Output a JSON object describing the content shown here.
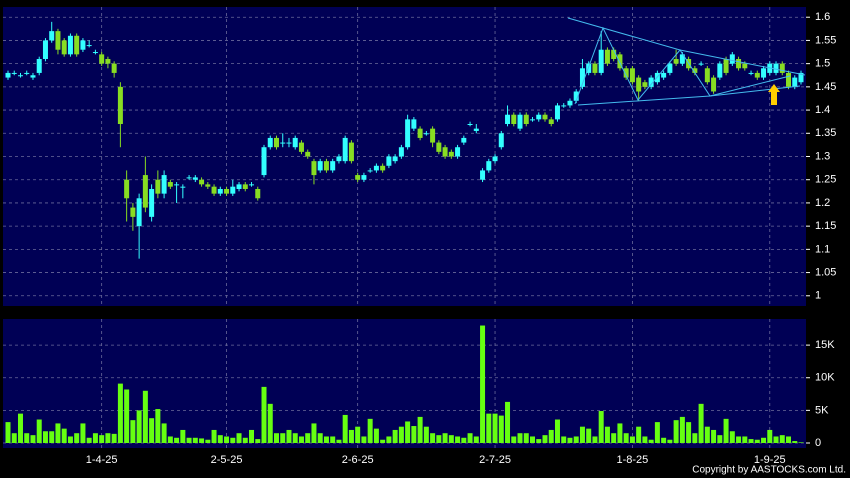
{
  "chart_data": [
    {
      "type": "candlestick",
      "up_color": "#33ffff",
      "down_color": "#88dd22",
      "ylim": [
        0.978,
        1.622
      ],
      "yticks": [
        1,
        1.05,
        1.1,
        1.15,
        1.2,
        1.25,
        1.3,
        1.35,
        1.4,
        1.45,
        1.5,
        1.55,
        1.6
      ],
      "grid": true,
      "categories": [
        null,
        null,
        null,
        null,
        null,
        null,
        null,
        null,
        null,
        null,
        null,
        null,
        null,
        null,
        null,
        "1-4-25",
        null,
        null,
        null,
        null,
        null,
        null,
        null,
        null,
        null,
        null,
        null,
        null,
        null,
        null,
        null,
        null,
        null,
        null,
        null,
        "2-5-25",
        null,
        null,
        null,
        null,
        null,
        null,
        null,
        null,
        null,
        null,
        null,
        null,
        null,
        null,
        null,
        null,
        null,
        null,
        null,
        null,
        "2-6-25",
        null,
        null,
        null,
        null,
        null,
        null,
        null,
        null,
        null,
        null,
        null,
        null,
        null,
        null,
        null,
        null,
        null,
        null,
        null,
        null,
        null,
        "2-7-25",
        null,
        null,
        null,
        null,
        null,
        null,
        null,
        null,
        null,
        null,
        null,
        null,
        null,
        null,
        null,
        null,
        null,
        null,
        null,
        null,
        null,
        "1-8-25",
        null,
        null,
        null,
        null,
        null,
        null,
        null,
        null,
        null,
        null,
        null,
        null,
        null,
        null,
        null,
        null,
        null,
        null,
        null,
        null,
        null,
        "1-9-25",
        null,
        null,
        null,
        null,
        null
      ],
      "ohlc": [
        [
          1.47,
          1.485,
          1.465,
          1.48
        ],
        [
          1.48,
          1.485,
          1.475,
          1.48
        ],
        [
          1.475,
          1.48,
          1.47,
          1.475
        ],
        [
          1.48,
          1.485,
          1.475,
          1.48
        ],
        [
          1.47,
          1.48,
          1.465,
          1.475
        ],
        [
          1.48,
          1.515,
          1.475,
          1.51
        ],
        [
          1.51,
          1.555,
          1.505,
          1.55
        ],
        [
          1.55,
          1.59,
          1.545,
          1.57
        ],
        [
          1.57,
          1.575,
          1.52,
          1.53
        ],
        [
          1.55,
          1.555,
          1.515,
          1.52
        ],
        [
          1.52,
          1.565,
          1.515,
          1.56
        ],
        [
          1.56,
          1.565,
          1.515,
          1.52
        ],
        [
          1.53,
          1.555,
          1.525,
          1.55
        ],
        [
          1.54,
          1.55,
          1.535,
          1.54
        ],
        [
          1.525,
          1.53,
          1.52,
          1.525
        ],
        [
          1.52,
          1.525,
          1.495,
          1.5
        ],
        [
          1.51,
          1.515,
          1.49,
          1.5
        ],
        [
          1.5,
          1.505,
          1.47,
          1.48
        ],
        [
          1.45,
          1.46,
          1.32,
          1.37
        ],
        [
          1.25,
          1.27,
          1.16,
          1.21
        ],
        [
          1.19,
          1.2,
          1.14,
          1.17
        ],
        [
          1.15,
          1.22,
          1.08,
          1.21
        ],
        [
          1.26,
          1.3,
          1.18,
          1.19
        ],
        [
          1.17,
          1.24,
          1.16,
          1.23
        ],
        [
          1.25,
          1.27,
          1.21,
          1.22
        ],
        [
          1.22,
          1.27,
          1.21,
          1.26
        ],
        [
          1.245,
          1.25,
          1.23,
          1.235
        ],
        [
          1.24,
          1.245,
          1.2,
          1.24
        ],
        [
          1.235,
          1.24,
          1.21,
          1.235
        ],
        [
          1.255,
          1.26,
          1.25,
          1.255
        ],
        [
          1.25,
          1.26,
          1.245,
          1.255
        ],
        [
          1.25,
          1.255,
          1.235,
          1.24
        ],
        [
          1.24,
          1.245,
          1.23,
          1.235
        ],
        [
          1.235,
          1.24,
          1.215,
          1.22
        ],
        [
          1.22,
          1.235,
          1.215,
          1.23
        ],
        [
          1.23,
          1.235,
          1.215,
          1.22
        ],
        [
          1.22,
          1.25,
          1.215,
          1.235
        ],
        [
          1.23,
          1.245,
          1.225,
          1.24
        ],
        [
          1.24,
          1.245,
          1.225,
          1.23
        ],
        [
          1.24,
          1.245,
          1.235,
          1.24
        ],
        [
          1.23,
          1.235,
          1.205,
          1.21
        ],
        [
          1.26,
          1.325,
          1.255,
          1.32
        ],
        [
          1.32,
          1.345,
          1.315,
          1.34
        ],
        [
          1.34,
          1.345,
          1.315,
          1.32
        ],
        [
          1.33,
          1.35,
          1.32,
          1.33
        ],
        [
          1.33,
          1.34,
          1.32,
          1.33
        ],
        [
          1.32,
          1.345,
          1.315,
          1.34
        ],
        [
          1.33,
          1.335,
          1.305,
          1.31
        ],
        [
          1.31,
          1.315,
          1.295,
          1.3
        ],
        [
          1.29,
          1.295,
          1.24,
          1.26
        ],
        [
          1.27,
          1.295,
          1.265,
          1.29
        ],
        [
          1.29,
          1.295,
          1.265,
          1.27
        ],
        [
          1.27,
          1.295,
          1.265,
          1.29
        ],
        [
          1.29,
          1.305,
          1.285,
          1.3
        ],
        [
          1.29,
          1.345,
          1.285,
          1.34
        ],
        [
          1.33,
          1.335,
          1.285,
          1.29
        ],
        [
          1.26,
          1.265,
          1.245,
          1.25
        ],
        [
          1.25,
          1.265,
          1.245,
          1.26
        ],
        [
          1.27,
          1.275,
          1.265,
          1.27
        ],
        [
          1.27,
          1.285,
          1.265,
          1.28
        ],
        [
          1.28,
          1.285,
          1.265,
          1.27
        ],
        [
          1.28,
          1.305,
          1.275,
          1.3
        ],
        [
          1.29,
          1.305,
          1.285,
          1.3
        ],
        [
          1.3,
          1.325,
          1.295,
          1.32
        ],
        [
          1.32,
          1.39,
          1.315,
          1.38
        ],
        [
          1.36,
          1.385,
          1.355,
          1.38
        ],
        [
          1.36,
          1.365,
          1.335,
          1.34
        ],
        [
          1.35,
          1.355,
          1.345,
          1.35
        ],
        [
          1.36,
          1.365,
          1.32,
          1.33
        ],
        [
          1.33,
          1.335,
          1.305,
          1.31
        ],
        [
          1.32,
          1.325,
          1.295,
          1.3
        ],
        [
          1.31,
          1.315,
          1.295,
          1.3
        ],
        [
          1.3,
          1.325,
          1.295,
          1.32
        ],
        [
          1.33,
          1.345,
          1.325,
          1.34
        ],
        [
          1.37,
          1.375,
          1.365,
          1.37
        ],
        [
          1.355,
          1.37,
          1.35,
          1.36
        ],
        [
          1.25,
          1.275,
          1.245,
          1.27
        ],
        [
          1.27,
          1.295,
          1.265,
          1.29
        ],
        [
          1.29,
          1.305,
          1.285,
          1.3
        ],
        [
          1.32,
          1.355,
          1.315,
          1.35
        ],
        [
          1.37,
          1.41,
          1.365,
          1.39
        ],
        [
          1.39,
          1.395,
          1.365,
          1.37
        ],
        [
          1.36,
          1.395,
          1.355,
          1.39
        ],
        [
          1.39,
          1.395,
          1.365,
          1.37
        ],
        [
          1.38,
          1.385,
          1.375,
          1.38
        ],
        [
          1.38,
          1.395,
          1.375,
          1.39
        ],
        [
          1.39,
          1.395,
          1.375,
          1.38
        ],
        [
          1.38,
          1.385,
          1.365,
          1.37
        ],
        [
          1.38,
          1.415,
          1.375,
          1.41
        ],
        [
          1.41,
          1.415,
          1.405,
          1.41
        ],
        [
          1.41,
          1.425,
          1.405,
          1.42
        ],
        [
          1.42,
          1.445,
          1.415,
          1.44
        ],
        [
          1.45,
          1.51,
          1.445,
          1.49
        ],
        [
          1.48,
          1.505,
          1.475,
          1.5
        ],
        [
          1.5,
          1.505,
          1.475,
          1.48
        ],
        [
          1.48,
          1.57,
          1.475,
          1.53
        ],
        [
          1.53,
          1.535,
          1.495,
          1.5
        ],
        [
          1.53,
          1.535,
          1.505,
          1.51
        ],
        [
          1.52,
          1.525,
          1.485,
          1.49
        ],
        [
          1.49,
          1.495,
          1.465,
          1.47
        ],
        [
          1.49,
          1.495,
          1.455,
          1.46
        ],
        [
          1.47,
          1.475,
          1.42,
          1.44
        ],
        [
          1.46,
          1.465,
          1.445,
          1.45
        ],
        [
          1.45,
          1.475,
          1.445,
          1.47
        ],
        [
          1.46,
          1.485,
          1.455,
          1.48
        ],
        [
          1.47,
          1.485,
          1.465,
          1.48
        ],
        [
          1.48,
          1.505,
          1.475,
          1.5
        ],
        [
          1.51,
          1.53,
          1.495,
          1.5
        ],
        [
          1.5,
          1.525,
          1.495,
          1.52
        ],
        [
          1.51,
          1.515,
          1.485,
          1.49
        ],
        [
          1.49,
          1.495,
          1.475,
          1.48
        ],
        [
          1.5,
          1.505,
          1.495,
          1.5
        ],
        [
          1.49,
          1.495,
          1.455,
          1.46
        ],
        [
          1.47,
          1.475,
          1.435,
          1.44
        ],
        [
          1.47,
          1.505,
          1.465,
          1.5
        ],
        [
          1.51,
          1.515,
          1.475,
          1.48
        ],
        [
          1.5,
          1.525,
          1.495,
          1.52
        ],
        [
          1.51,
          1.515,
          1.485,
          1.49
        ],
        [
          1.5,
          1.505,
          1.485,
          1.49
        ],
        [
          1.48,
          1.485,
          1.475,
          1.48
        ],
        [
          1.48,
          1.485,
          1.465,
          1.47
        ],
        [
          1.47,
          1.495,
          1.465,
          1.49
        ],
        [
          1.48,
          1.505,
          1.475,
          1.5
        ],
        [
          1.48,
          1.505,
          1.475,
          1.5
        ],
        [
          1.5,
          1.505,
          1.475,
          1.48
        ],
        [
          1.48,
          1.485,
          1.445,
          1.45
        ],
        [
          1.45,
          1.475,
          1.445,
          1.47
        ],
        [
          1.46,
          1.485,
          1.455,
          1.48
        ]
      ]
    },
    {
      "type": "bar",
      "color": "#66ff11",
      "ylim": [
        0,
        19000
      ],
      "yticks": [
        0,
        {
          "value": 5000,
          "label": "5K"
        },
        {
          "value": 10000,
          "label": "10K"
        },
        {
          "value": 15000,
          "label": "15K"
        }
      ],
      "grid": true,
      "values": [
        3200,
        1500,
        4500,
        1500,
        1200,
        3600,
        1800,
        1800,
        3000,
        2200,
        1000,
        1500,
        3000,
        800,
        1500,
        1200,
        1500,
        1400,
        9100,
        8200,
        3500,
        5000,
        8000,
        3800,
        5200,
        3000,
        1000,
        800,
        2000,
        800,
        800,
        700,
        500,
        2000,
        1200,
        1000,
        800,
        1500,
        800,
        2000,
        600,
        8600,
        6000,
        1500,
        1500,
        2000,
        1500,
        1000,
        1500,
        3000,
        1500,
        1000,
        1000,
        500,
        4300,
        2000,
        2500,
        1000,
        3700,
        2200,
        500,
        1000,
        2000,
        2500,
        3300,
        2600,
        4000,
        2500,
        1500,
        1200,
        1500,
        1200,
        1000,
        800,
        1500,
        1000,
        18000,
        4500,
        4500,
        4200,
        6300,
        1000,
        1500,
        1500,
        1000,
        600,
        1200,
        2000,
        3600,
        1000,
        800,
        1000,
        2500,
        2200,
        1000,
        4900,
        2500,
        1500,
        3000,
        1500,
        1000,
        2500,
        1000,
        500,
        3200,
        800,
        500,
        3500,
        4000,
        3200,
        1500,
        6000,
        2500,
        2000,
        1200,
        3700,
        1800,
        1000,
        1000,
        600,
        500,
        800,
        2000,
        1000,
        1200,
        1000,
        300,
        100
      ]
    }
  ],
  "copyright": "Copyright by AASTOCKS.com Ltd."
}
